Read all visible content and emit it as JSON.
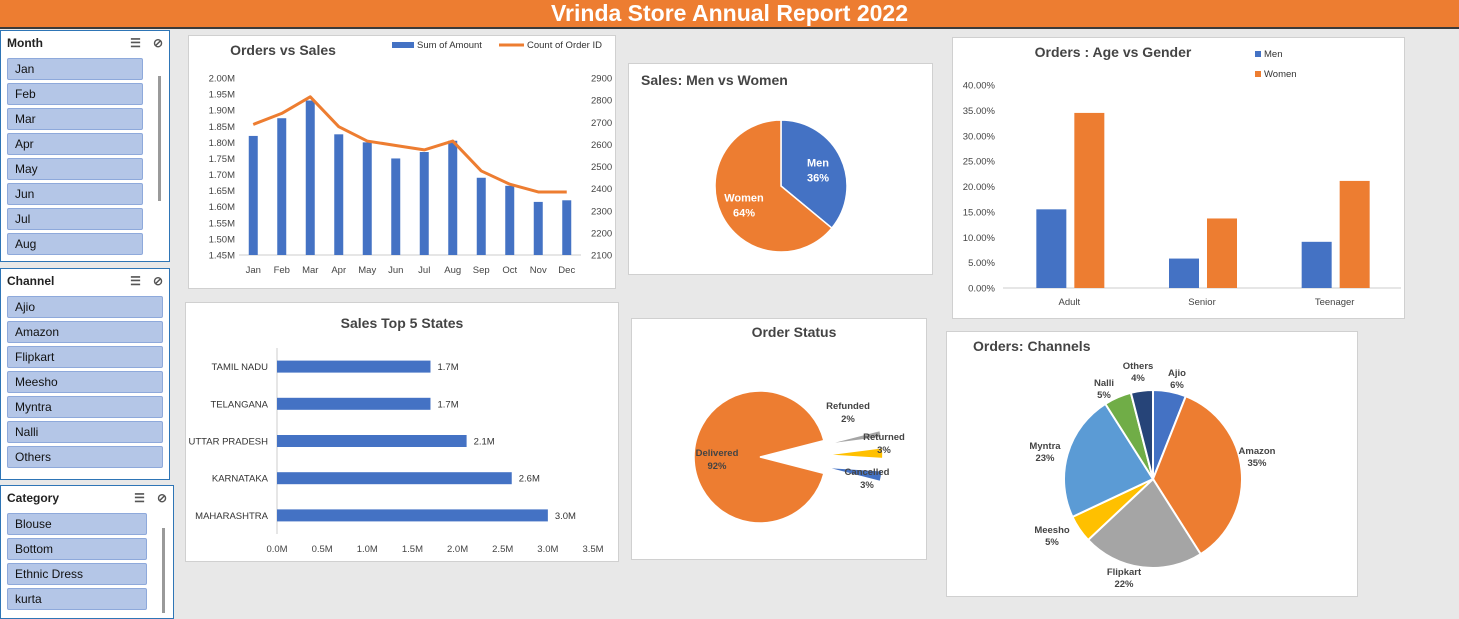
{
  "report_title": "Vrinda Store Annual Report 2022",
  "slicers": {
    "month": {
      "title": "Month",
      "items": [
        "Jan",
        "Feb",
        "Mar",
        "Apr",
        "May",
        "Jun",
        "Jul",
        "Aug"
      ]
    },
    "channel": {
      "title": "Channel",
      "items": [
        "Ajio",
        "Amazon",
        "Flipkart",
        "Meesho",
        "Myntra",
        "Nalli",
        "Others"
      ]
    },
    "category": {
      "title": "Category",
      "items": [
        "Blouse",
        "Bottom",
        "Ethnic Dress",
        "kurta"
      ]
    }
  },
  "colors": {
    "accent": "#ed7d31",
    "blue": "#4472c4",
    "gray": "#a5a5a5",
    "yellow": "#ffc000",
    "lightblue": "#5b9bd5",
    "green": "#70ad47",
    "navy": "#264478"
  },
  "chart_data": [
    {
      "id": "orders_vs_sales",
      "type": "bar+line",
      "title": "Orders vs Sales",
      "categories": [
        "Jan",
        "Feb",
        "Mar",
        "Apr",
        "May",
        "Jun",
        "Jul",
        "Aug",
        "Sep",
        "Oct",
        "Nov",
        "Dec"
      ],
      "series": [
        {
          "name": "Sum of Amount",
          "type": "bar",
          "axis": "left",
          "values": [
            1.82,
            1.875,
            1.93,
            1.825,
            1.8,
            1.75,
            1.77,
            1.805,
            1.69,
            1.665,
            1.615,
            1.62
          ]
        },
        {
          "name": "Count of Order ID",
          "type": "line",
          "axis": "right",
          "values": [
            2690,
            2740,
            2815,
            2680,
            2615,
            2595,
            2575,
            2615,
            2480,
            2420,
            2385,
            2385
          ]
        }
      ],
      "y_left": {
        "min": 1.45,
        "max": 2.0,
        "ticks": [
          "2.00M",
          "1.95M",
          "1.90M",
          "1.85M",
          "1.80M",
          "1.75M",
          "1.70M",
          "1.65M",
          "1.60M",
          "1.55M",
          "1.50M",
          "1.45M"
        ]
      },
      "y_right": {
        "min": 2100,
        "max": 2900,
        "ticks": [
          "2900",
          "2800",
          "2700",
          "2600",
          "2500",
          "2400",
          "2300",
          "2200",
          "2100"
        ]
      },
      "legend": "top"
    },
    {
      "id": "sales_men_women",
      "type": "pie",
      "title": "Sales: Men vs Women",
      "slices": [
        {
          "label": "Men",
          "value": 36,
          "text": "36%"
        },
        {
          "label": "Women",
          "value": 64,
          "text": "64%"
        }
      ]
    },
    {
      "id": "age_vs_gender",
      "type": "bar",
      "title": "Orders : Age vs Gender",
      "categories": [
        "Adult",
        "Senior",
        "Teenager"
      ],
      "series": [
        {
          "name": "Men",
          "values": [
            15.5,
            5.8,
            9.1
          ]
        },
        {
          "name": "Women",
          "values": [
            34.5,
            13.7,
            21.1
          ]
        }
      ],
      "ylim": [
        0,
        40
      ],
      "ticks": [
        "40.00%",
        "35.00%",
        "30.00%",
        "25.00%",
        "20.00%",
        "15.00%",
        "10.00%",
        "5.00%",
        "0.00%"
      ],
      "legend": "top-right"
    },
    {
      "id": "top5_states",
      "type": "bar",
      "orientation": "horizontal",
      "title": "Sales Top 5 States",
      "categories": [
        "TAMIL NADU",
        "TELANGANA",
        "UTTAR PRADESH",
        "KARNATAKA",
        "MAHARASHTRA"
      ],
      "values": [
        1.7,
        1.7,
        2.1,
        2.6,
        3.0
      ],
      "data_labels": [
        "1.7M",
        "1.7M",
        "2.1M",
        "2.6M",
        "3.0M"
      ],
      "xlim": [
        0,
        3.5
      ],
      "ticks": [
        "0.0M",
        "0.5M",
        "1.0M",
        "1.5M",
        "2.0M",
        "2.5M",
        "3.0M",
        "3.5M"
      ]
    },
    {
      "id": "order_status",
      "type": "pie",
      "title": "Order Status",
      "slices": [
        {
          "label": "Delivered",
          "value": 92,
          "text": "92%"
        },
        {
          "label": "Refunded",
          "value": 2,
          "text": "2%"
        },
        {
          "label": "Returned",
          "value": 3,
          "text": "3%"
        },
        {
          "label": "Cancelled",
          "value": 3,
          "text": "3%"
        }
      ]
    },
    {
      "id": "orders_channels",
      "type": "pie",
      "title": "Orders: Channels",
      "slices": [
        {
          "label": "Ajio",
          "value": 6,
          "text": "6%"
        },
        {
          "label": "Amazon",
          "value": 35,
          "text": "35%"
        },
        {
          "label": "Flipkart",
          "value": 22,
          "text": "22%"
        },
        {
          "label": "Meesho",
          "value": 5,
          "text": "5%"
        },
        {
          "label": "Myntra",
          "value": 23,
          "text": "23%"
        },
        {
          "label": "Nalli",
          "value": 5,
          "text": "5%"
        },
        {
          "label": "Others",
          "value": 4,
          "text": "4%"
        }
      ]
    }
  ]
}
